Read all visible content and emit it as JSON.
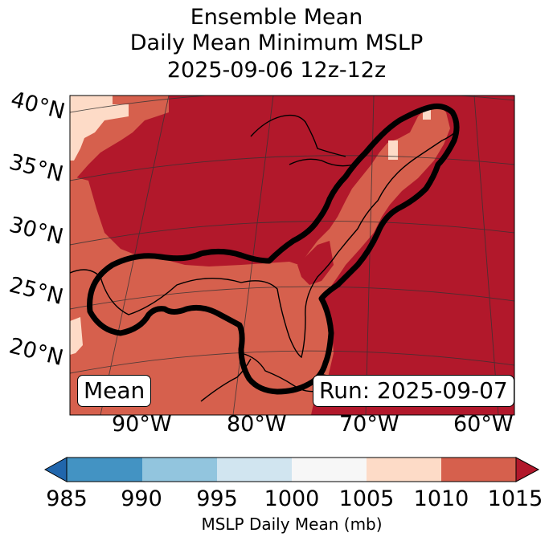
{
  "title": {
    "line1": "Ensemble Mean",
    "line2": "Daily Mean Minimum MSLP",
    "line3": "2025-09-06 12z-12z"
  },
  "map": {
    "lat_labels": [
      "40°N",
      "35°N",
      "30°N",
      "25°N",
      "20°N"
    ],
    "lon_labels": [
      "90°W",
      "80°W",
      "70°W",
      "60°W"
    ],
    "left_box": "Mean",
    "right_box": "Run: 2025-09-07",
    "fill_colors": {
      "ge_1010": "#b2182b",
      "1005_1010": "#d6604d",
      "1000_1005": "#fddbc7",
      "lt_1000": "#f7f7f7"
    },
    "contour_color": "#000000",
    "grid_color": "#333333"
  },
  "colorbar": {
    "ticks": [
      "985",
      "990",
      "995",
      "1000",
      "1005",
      "1010",
      "1015"
    ],
    "label": "MSLP Daily Mean (mb)",
    "colors": [
      "#2166ac",
      "#4393c3",
      "#92c5de",
      "#d1e5f0",
      "#f7f7f7",
      "#fddbc7",
      "#d6604d",
      "#b2182b"
    ]
  }
}
